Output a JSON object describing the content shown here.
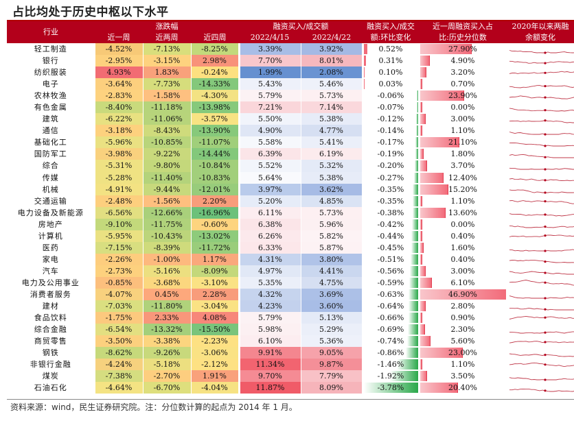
{
  "title": "占比均处于历史中枢以下水平",
  "footnote": "资料来源：wind，民生证券研究院。注：分位数计算的起点为 2014 年 1 月。",
  "header": {
    "industry": "行业",
    "change_group": "涨跌幅",
    "week1": "近一周",
    "week2": "近两周",
    "week4": "近四周",
    "ratio_group": "融资买入/成交额",
    "date1": "2022/4/15",
    "date2": "2022/4/22",
    "chg_line1": "融资买入/成交",
    "chg_line2": "额:环比变化",
    "pct_line1": "近一周融资买入占",
    "pct_line2": "比:历史分位数",
    "since_line1": "2020年以来两融",
    "since_line2": "余额变化"
  },
  "colors": {
    "header_bg": "#b3001b",
    "positive_bar": "#f26b7a",
    "negative_bar": "#2aa84a"
  },
  "rows": [
    {
      "industry": "轻工制造",
      "w1": "-4.52%",
      "w2": "-7.13%",
      "w4": "-8.25%",
      "r1": "3.39%",
      "r2": "3.92%",
      "chg": "0.52%",
      "pct": "27.90%",
      "w1c": "#f7c977",
      "w2c": "#d9de7c",
      "w4c": "#c2d97b",
      "r1c": "#a8bde6",
      "r2c": "#a4b9e4",
      "chgv": 0.52,
      "pctv": 27.9
    },
    {
      "industry": "银行",
      "w1": "-2.95%",
      "w2": "-3.15%",
      "w4": "2.98%",
      "r1": "7.70%",
      "r2": "8.01%",
      "chg": "0.31%",
      "pct": "4.90%",
      "w1c": "#fdd17e",
      "w2c": "#fed27f",
      "w4c": "#f8927a",
      "r1c": "#f8c7cc",
      "r2c": "#f6b8be",
      "chgv": 0.31,
      "pctv": 4.9
    },
    {
      "industry": "纺织服装",
      "w1": "4.93%",
      "w2": "1.83%",
      "w4": "-0.24%",
      "r1": "1.99%",
      "r2": "2.08%",
      "chg": "0.10%",
      "pct": "3.20%",
      "w1c": "#f26c73",
      "w2c": "#f9a17b",
      "w4c": "#fde080",
      "r1c": "#6690d0",
      "r2c": "#6a93d2",
      "chgv": 0.1,
      "pctv": 3.2
    },
    {
      "industry": "电子",
      "w1": "-3.64%",
      "w2": "-7.73%",
      "w4": "-14.33%",
      "r1": "5.43%",
      "r2": "5.46%",
      "chg": "0.03%",
      "pct": "0.70%",
      "w1c": "#fccf7e",
      "w2c": "#d6dd7c",
      "w4c": "#84c87b",
      "r1c": "#eef1fa",
      "r2c": "#eef1fa",
      "chgv": 0.03,
      "pctv": 0.7
    },
    {
      "industry": "农林牧渔",
      "w1": "-2.83%",
      "w2": "-1.58%",
      "w4": "-4.30%",
      "r1": "5.79%",
      "r2": "5.73%",
      "chg": "-0.06%",
      "pct": "23.90%",
      "w1c": "#fdd27f",
      "w2c": "#fec080",
      "w4c": "#f3e283",
      "r1c": "#fcf2f4",
      "r2c": "#fdf0f2",
      "chgv": -0.06,
      "pctv": 23.9
    },
    {
      "industry": "有色金属",
      "w1": "-8.40%",
      "w2": "-11.18%",
      "w4": "-13.98%",
      "r1": "7.21%",
      "r2": "7.14%",
      "chg": "-0.07%",
      "pct": "0.00%",
      "w1c": "#c9da7c",
      "w2c": "#b6d47b",
      "w4c": "#86c97b",
      "r1c": "#fad6da",
      "r2c": "#fad8dc",
      "chgv": -0.07,
      "pctv": 0.0
    },
    {
      "industry": "建筑",
      "w1": "-6.22%",
      "w2": "-11.06%",
      "w4": "-3.57%",
      "r1": "5.50%",
      "r2": "5.38%",
      "chg": "-0.12%",
      "pct": "3.00%",
      "w1c": "#e8e181",
      "w2c": "#b7d47b",
      "w4c": "#f8e383",
      "r1c": "#f1f4fb",
      "r2c": "#e7ecf8",
      "chgv": -0.12,
      "pctv": 3.0
    },
    {
      "industry": "通信",
      "w1": "-3.18%",
      "w2": "-8.43%",
      "w4": "-13.90%",
      "r1": "4.90%",
      "r2": "4.77%",
      "chg": "-0.14%",
      "pct": "1.10%",
      "w1c": "#fdd17e",
      "w2c": "#cfdb7c",
      "w4c": "#87c97b",
      "r1c": "#dfe6f5",
      "r2c": "#d6dff2",
      "chgv": -0.14,
      "pctv": 1.1
    },
    {
      "industry": "基础化工",
      "w1": "-5.96%",
      "w2": "-10.85%",
      "w4": "-11.07%",
      "r1": "5.58%",
      "r2": "5.41%",
      "chg": "-0.17%",
      "pct": "21.10%",
      "w1c": "#eae182",
      "w2c": "#b9d57b",
      "w4c": "#a0cf7b",
      "r1c": "#f6f8fc",
      "r2c": "#ebeff9",
      "chgv": -0.17,
      "pctv": 21.1
    },
    {
      "industry": "国防军工",
      "w1": "-3.98%",
      "w2": "-9.22%",
      "w4": "-14.44%",
      "r1": "6.39%",
      "r2": "6.19%",
      "chg": "-0.19%",
      "pct": "1.80%",
      "w1c": "#f9d17e",
      "w2c": "#c9d97c",
      "w4c": "#83c87b",
      "r1c": "#fbe5e8",
      "r2c": "#fcebed",
      "chgv": -0.19,
      "pctv": 1.8
    },
    {
      "industry": "综合",
      "w1": "-5.31%",
      "w2": "-9.80%",
      "w4": "-10.84%",
      "r1": "5.52%",
      "r2": "5.32%",
      "chg": "-0.20%",
      "pct": "3.70%",
      "w1c": "#efe283",
      "w2c": "#c4d87b",
      "w4c": "#a2cf7b",
      "r1c": "#f2f5fb",
      "r2c": "#e4eaf7",
      "chgv": -0.2,
      "pctv": 3.7
    },
    {
      "industry": "传媒",
      "w1": "-5.28%",
      "w2": "-11.40%",
      "w4": "-10.83%",
      "r1": "5.64%",
      "r2": "5.38%",
      "chg": "-0.27%",
      "pct": "12.40%",
      "w1c": "#efe283",
      "w2c": "#b4d37b",
      "w4c": "#a2cf7b",
      "r1c": "#f9fafd",
      "r2c": "#e7ecf8",
      "chgv": -0.27,
      "pctv": 12.4
    },
    {
      "industry": "机械",
      "w1": "-4.91%",
      "w2": "-9.44%",
      "w4": "-12.01%",
      "r1": "3.97%",
      "r2": "3.62%",
      "chg": "-0.35%",
      "pct": "15.20%",
      "w1c": "#f3e283",
      "w2c": "#c7d97c",
      "w4c": "#98cc7b",
      "r1c": "#b9cbeb",
      "r2c": "#a6bbe5",
      "chgv": -0.35,
      "pctv": 15.2
    },
    {
      "industry": "交通运输",
      "w1": "-2.48%",
      "w2": "-1.56%",
      "w4": "2.20%",
      "r1": "5.20%",
      "r2": "4.85%",
      "chg": "-0.35%",
      "pct": "1.10%",
      "w1c": "#fdcf7e",
      "w2c": "#febf7f",
      "w4c": "#f89d7b",
      "r1c": "#e6ecf8",
      "r2c": "#dae3f4",
      "chgv": -0.35,
      "pctv": 1.1
    },
    {
      "industry": "电力设备及新能源",
      "w1": "-6.56%",
      "w2": "-12.66%",
      "w4": "-16.96%",
      "r1": "6.11%",
      "r2": "5.73%",
      "chg": "-0.38%",
      "pct": "13.60%",
      "w1c": "#e2df81",
      "w2c": "#a9d07b",
      "w4c": "#6cc17a",
      "r1c": "#fcedf0",
      "r2c": "#fdf0f2",
      "chgv": -0.38,
      "pctv": 13.6
    },
    {
      "industry": "房地产",
      "w1": "-9.10%",
      "w2": "-11.75%",
      "w4": "-0.60%",
      "r1": "6.38%",
      "r2": "5.96%",
      "chg": "-0.42%",
      "pct": "0.00%",
      "w1c": "#c3d97b",
      "w2c": "#b0d27b",
      "w4c": "#fdd47f",
      "r1c": "#fbe5e8",
      "r2c": "#fcf0f2",
      "chgv": -0.42,
      "pctv": 0.0
    },
    {
      "industry": "计算机",
      "w1": "-5.95%",
      "w2": "-10.43%",
      "w4": "-13.02%",
      "r1": "6.26%",
      "r2": "5.82%",
      "chg": "-0.44%",
      "pct": "0.40%",
      "w1c": "#eae182",
      "w2c": "#bcd57b",
      "w4c": "#8ecb7b",
      "r1c": "#fce9ec",
      "r2c": "#fdf3f5",
      "chgv": -0.44,
      "pctv": 0.4
    },
    {
      "industry": "医药",
      "w1": "-7.15%",
      "w2": "-8.39%",
      "w4": "-11.72%",
      "r1": "6.33%",
      "r2": "5.87%",
      "chg": "-0.45%",
      "pct": "1.60%",
      "w1c": "#d8de80",
      "w2c": "#cfdb7c",
      "w4c": "#9acd7b",
      "r1c": "#fce7ea",
      "r2c": "#fdf2f4",
      "chgv": -0.45,
      "pctv": 1.6
    },
    {
      "industry": "家电",
      "w1": "-2.26%",
      "w2": "-1.00%",
      "w4": "1.17%",
      "r1": "4.31%",
      "r2": "3.80%",
      "chg": "-0.51%",
      "pct": "0.40%",
      "w1c": "#fdcd7e",
      "w2c": "#fdb97e",
      "w4c": "#faa87c",
      "r1c": "#c6d4ee",
      "r2c": "#b0c3e8",
      "chgv": -0.51,
      "pctv": 0.4
    },
    {
      "industry": "汽车",
      "w1": "-2.73%",
      "w2": "-5.16%",
      "w4": "-8.09%",
      "r1": "4.97%",
      "r2": "4.41%",
      "chg": "-0.56%",
      "pct": "3.00%",
      "w1c": "#fdd17e",
      "w2c": "#ecdf80",
      "w4c": "#c4d87b",
      "r1c": "#e1e8f6",
      "r2c": "#cad7ef",
      "chgv": -0.56,
      "pctv": 3.0
    },
    {
      "industry": "电力及公用事业",
      "w1": "-0.85%",
      "w2": "-3.68%",
      "w4": "-3.10%",
      "r1": "5.35%",
      "r2": "4.75%",
      "chg": "-0.59%",
      "pct": "6.10%",
      "w1c": "#fcbf7d",
      "w2c": "#fbd77f",
      "w4c": "#fae284",
      "r1c": "#ebeff9",
      "r2c": "#d6dff2",
      "chgv": -0.59,
      "pctv": 6.1
    },
    {
      "industry": "消费者服务",
      "w1": "-4.07%",
      "w2": "0.45%",
      "w4": "2.28%",
      "r1": "4.32%",
      "r2": "3.69%",
      "chg": "-0.63%",
      "pct": "46.90%",
      "w1c": "#f8d17e",
      "w2c": "#fda87c",
      "w4c": "#f89c7b",
      "r1c": "#c6d4ee",
      "r2c": "#acc0e7",
      "chgv": -0.63,
      "pctv": 46.9
    },
    {
      "industry": "建材",
      "w1": "-7.03%",
      "w2": "-11.80%",
      "w4": "-3.04%",
      "r1": "4.23%",
      "r2": "3.60%",
      "chg": "-0.64%",
      "pct": "2.80%",
      "w1c": "#dadf80",
      "w2c": "#b0d27b",
      "w4c": "#fae284",
      "r1c": "#c3d1ed",
      "r2c": "#a8bde6",
      "chgv": -0.64,
      "pctv": 2.8
    },
    {
      "industry": "食品饮料",
      "w1": "-1.75%",
      "w2": "2.33%",
      "w4": "4.08%",
      "r1": "5.79%",
      "r2": "5.13%",
      "chg": "-0.66%",
      "pct": "0.90%",
      "w1c": "#fcc97e",
      "w2c": "#f8977b",
      "w4c": "#f7877a",
      "r1c": "#fcf2f4",
      "r2c": "#e4eaf7",
      "chgv": -0.66,
      "pctv": 0.9
    },
    {
      "industry": "综合金融",
      "w1": "-6.54%",
      "w2": "-13.32%",
      "w4": "-15.50%",
      "r1": "5.98%",
      "r2": "5.29%",
      "chg": "-0.69%",
      "pct": "2.30%",
      "w1c": "#e3df81",
      "w2c": "#a4cf7b",
      "w4c": "#79c47b",
      "r1c": "#fcf0f2",
      "r2c": "#ebeff9",
      "chgv": -0.69,
      "pctv": 2.3
    },
    {
      "industry": "商贸零售",
      "w1": "-3.50%",
      "w2": "-3.38%",
      "w4": "-2.23%",
      "r1": "6.10%",
      "r2": "5.36%",
      "chg": "-0.74%",
      "pct": "5.60%",
      "w1c": "#fcd07e",
      "w2c": "#fcd57f",
      "w4c": "#fde183",
      "r1c": "#fcedf0",
      "r2c": "#eef1fa",
      "chgv": -0.74,
      "pctv": 5.6
    },
    {
      "industry": "钢铁",
      "w1": "-8.62%",
      "w2": "-9.26%",
      "w4": "-3.06%",
      "r1": "9.91%",
      "r2": "9.05%",
      "chg": "-0.86%",
      "pct": "23.00%",
      "w1c": "#c6d97b",
      "w2c": "#c8d97c",
      "w4c": "#fae284",
      "r1c": "#f4868f",
      "r2c": "#f6a2aa",
      "chgv": -0.86,
      "pctv": 23.0
    },
    {
      "industry": "非银行金融",
      "w1": "-4.24%",
      "w2": "-5.18%",
      "w4": "-2.12%",
      "r1": "11.34%",
      "r2": "9.87%",
      "chg": "-1.46%",
      "pct": "1.10%",
      "w1c": "#f6d17e",
      "w2c": "#ecdf80",
      "w4c": "#fde183",
      "r1c": "#f26470",
      "r2c": "#f48f98",
      "chgv": -1.46,
      "pctv": 1.1
    },
    {
      "industry": "煤炭",
      "w1": "-7.38%",
      "w2": "-2.70%",
      "w4": "1.91%",
      "r1": "9.70%",
      "r2": "7.79%",
      "chg": "-1.92%",
      "pct": "3.50%",
      "w1c": "#d5dd80",
      "w2c": "#fdce7f",
      "w4c": "#f9a17b",
      "r1c": "#f58b94",
      "r2c": "#f8c1c6",
      "chgv": -1.92,
      "pctv": 3.5
    },
    {
      "industry": "石油石化",
      "w1": "-4.64%",
      "w2": "-6.70%",
      "w4": "-4.04%",
      "r1": "11.87%",
      "r2": "8.09%",
      "chg": "-3.78%",
      "pct": "20.40%",
      "w1c": "#f4e383",
      "w2c": "#dedf7d",
      "w4c": "#f6e283",
      "r1c": "#f05b68",
      "r2c": "#f6b4ba",
      "chgv": -3.78,
      "pctv": 20.4
    }
  ]
}
